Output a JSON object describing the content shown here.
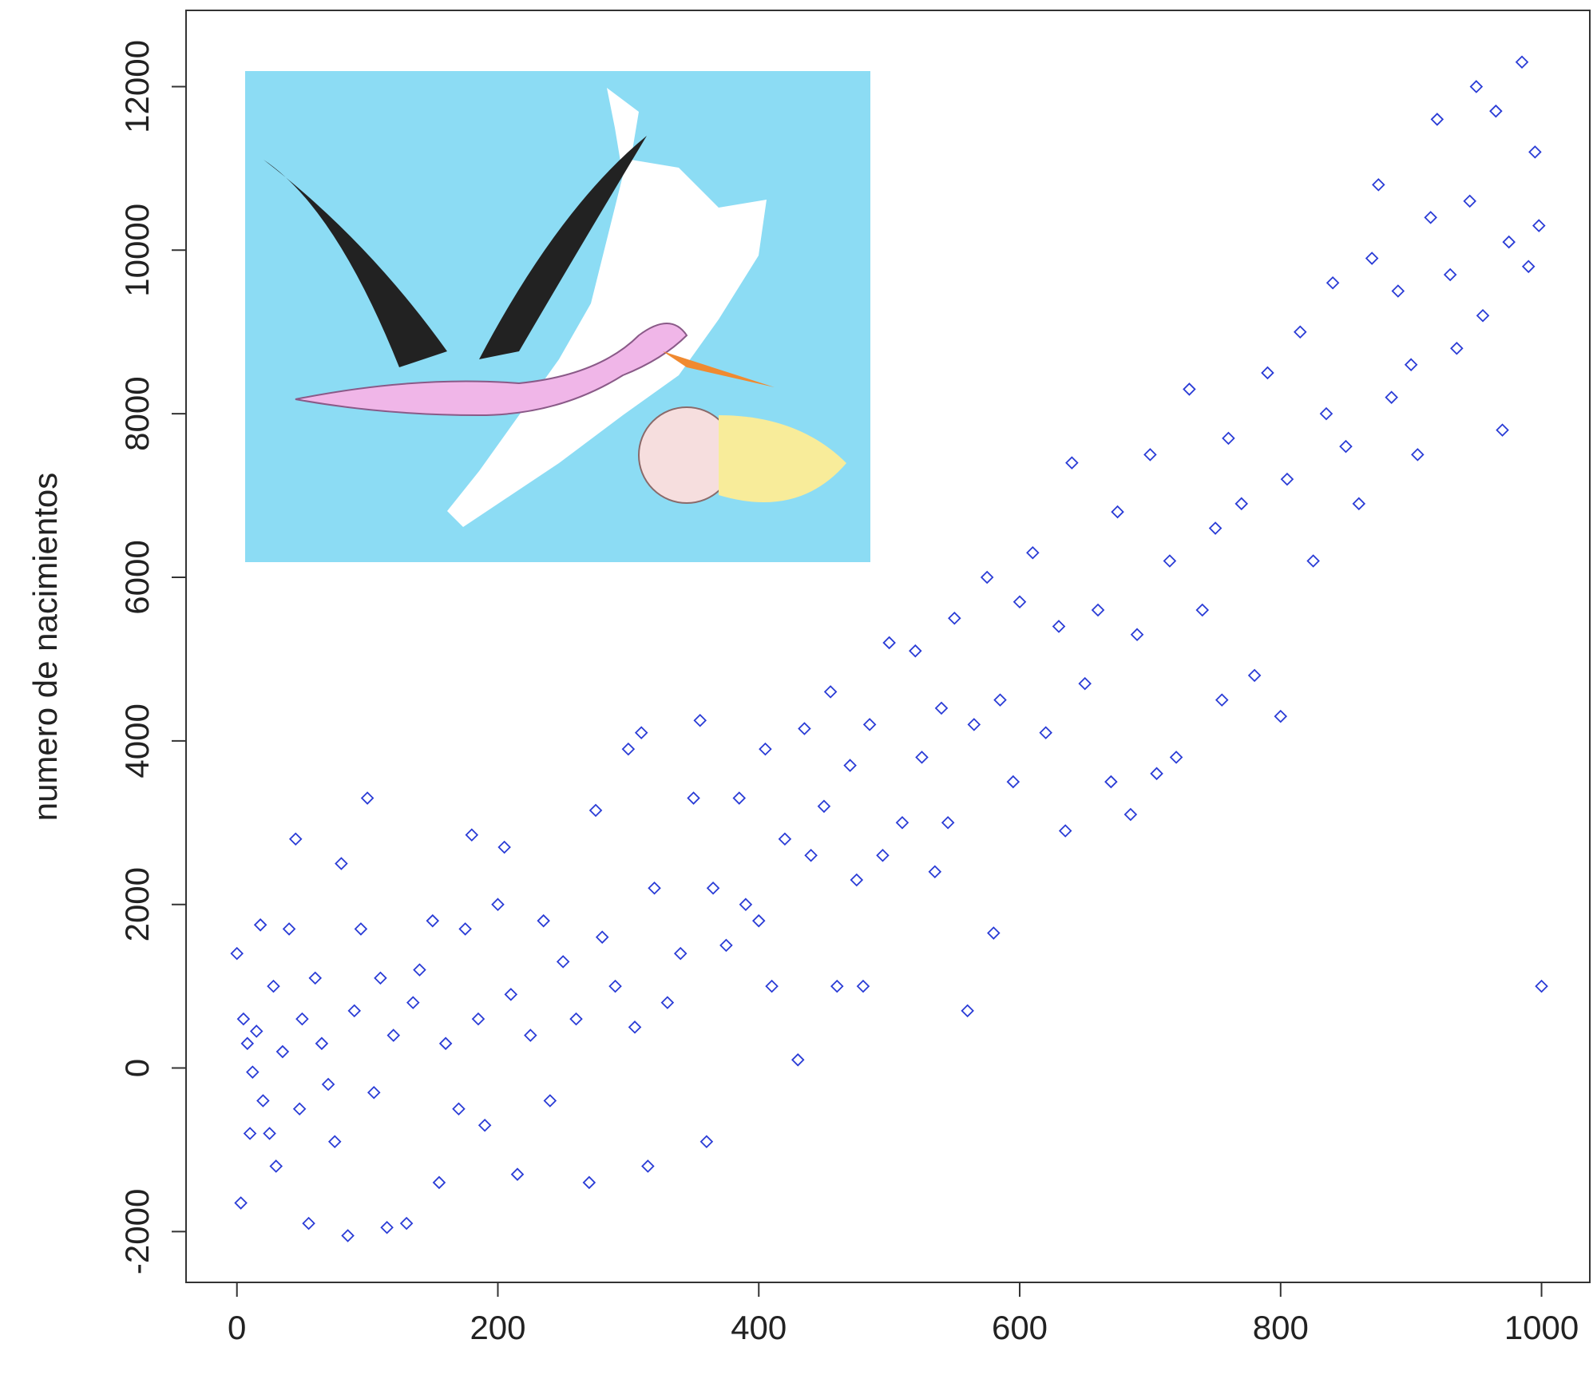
{
  "chart_data": {
    "type": "scatter",
    "y_label": "numero de nacimientos",
    "color": "#2a3cd6",
    "xlim": [
      -39,
      1037
    ],
    "ylim": [
      -2621,
      12932
    ],
    "xticks": [
      0,
      200,
      400,
      600,
      800,
      1000
    ],
    "yticks": [
      -2000,
      0,
      2000,
      4000,
      6000,
      8000,
      10000,
      12000
    ],
    "grid": false,
    "x": [
      0,
      3,
      5,
      8,
      10,
      12,
      15,
      18,
      20,
      25,
      28,
      30,
      35,
      40,
      45,
      48,
      50,
      55,
      60,
      65,
      70,
      75,
      80,
      85,
      90,
      95,
      100,
      105,
      110,
      115,
      120,
      130,
      135,
      140,
      150,
      155,
      160,
      170,
      175,
      180,
      185,
      190,
      200,
      205,
      210,
      215,
      225,
      235,
      240,
      250,
      260,
      270,
      275,
      280,
      290,
      300,
      305,
      310,
      315,
      320,
      330,
      340,
      350,
      355,
      360,
      365,
      375,
      385,
      390,
      400,
      405,
      410,
      420,
      430,
      435,
      440,
      450,
      455,
      460,
      470,
      475,
      480,
      485,
      495,
      500,
      510,
      520,
      525,
      535,
      540,
      545,
      550,
      560,
      565,
      575,
      580,
      585,
      595,
      600,
      610,
      620,
      630,
      635,
      640,
      650,
      660,
      670,
      675,
      685,
      690,
      700,
      705,
      715,
      720,
      730,
      740,
      750,
      755,
      760,
      770,
      780,
      790,
      800,
      805,
      815,
      825,
      835,
      840,
      850,
      860,
      870,
      875,
      885,
      890,
      900,
      905,
      915,
      920,
      930,
      935,
      945,
      950,
      955,
      965,
      970,
      975,
      985,
      990,
      995,
      1000,
      998
    ],
    "values": [
      1400,
      -1650,
      600,
      300,
      -800,
      -50,
      450,
      1750,
      -400,
      -800,
      1000,
      -1200,
      200,
      1700,
      2800,
      -500,
      600,
      -1900,
      1100,
      300,
      -200,
      -900,
      2500,
      -2050,
      700,
      1700,
      3300,
      -300,
      1100,
      -1950,
      400,
      -1900,
      800,
      1200,
      1800,
      -1400,
      300,
      -500,
      1700,
      2850,
      600,
      -700,
      2000,
      2700,
      900,
      -1300,
      400,
      1800,
      -400,
      1300,
      600,
      -1400,
      3150,
      1600,
      1000,
      3900,
      500,
      4100,
      -1200,
      2200,
      800,
      1400,
      3300,
      4250,
      -900,
      2200,
      1500,
      3300,
      2000,
      1800,
      3900,
      1000,
      2800,
      100,
      4150,
      2600,
      3200,
      4600,
      1000,
      3700,
      2300,
      1000,
      4200,
      2600,
      5200,
      3000,
      5100,
      3800,
      2400,
      4400,
      3000,
      5500,
      700,
      4200,
      6000,
      1650,
      4500,
      3500,
      5700,
      6300,
      4100,
      5400,
      2900,
      7400,
      4700,
      5600,
      3500,
      6800,
      3100,
      5300,
      7500,
      3600,
      6200,
      3800,
      8300,
      5600,
      6600,
      4500,
      7700,
      6900,
      4800,
      8500,
      4300,
      7200,
      9000,
      6200,
      8000,
      9600,
      7600,
      6900,
      9900,
      10800,
      8200,
      9500,
      8600,
      7500,
      10400,
      11600,
      9700,
      8800,
      10600,
      12000,
      9200,
      11700,
      7800,
      10100,
      12300,
      9800,
      11200,
      1000,
      10300
    ]
  }
}
